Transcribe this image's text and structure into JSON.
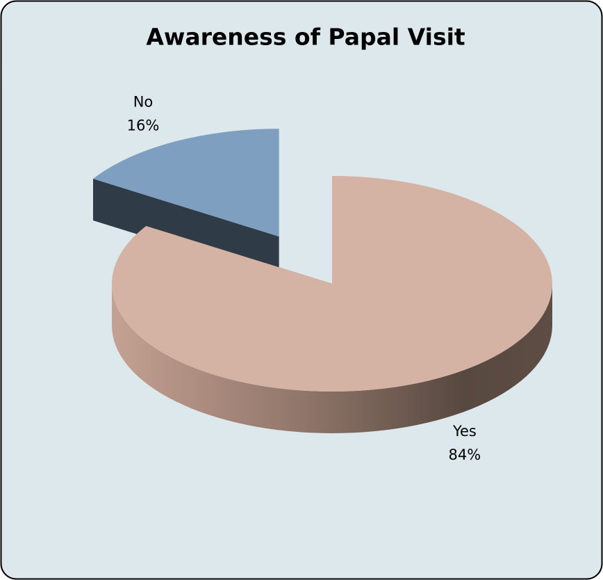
{
  "chart_data": {
    "type": "pie",
    "title": "Awareness of Papal Visit",
    "categories": [
      "Yes",
      "No"
    ],
    "values": [
      84,
      16
    ],
    "value_labels": [
      "84%",
      "16%"
    ],
    "colors": [
      "#d4b3a5",
      "#7e9fbf"
    ],
    "exploded": [
      "No"
    ],
    "three_d": true
  }
}
